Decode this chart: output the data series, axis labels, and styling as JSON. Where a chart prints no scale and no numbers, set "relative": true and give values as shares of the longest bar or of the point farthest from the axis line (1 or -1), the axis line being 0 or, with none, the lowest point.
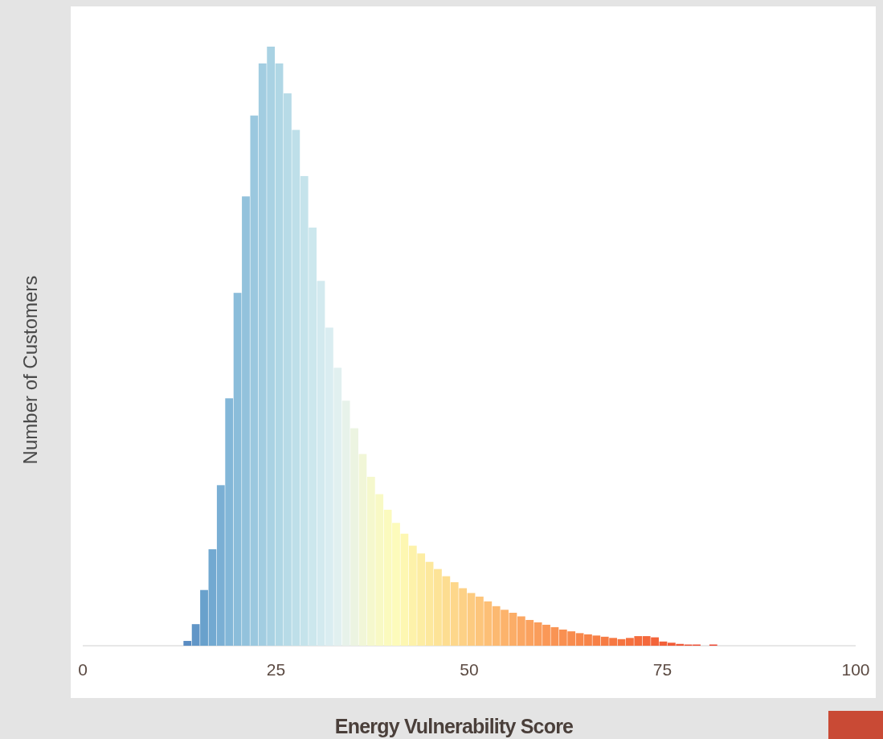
{
  "chart_data": {
    "type": "bar",
    "xlabel": "Energy Vulnerability Score",
    "ylabel": "Number of Customers",
    "relative": true,
    "xlim": [
      0,
      100
    ],
    "xticks": [
      0,
      25,
      50,
      75,
      100
    ],
    "tick_labels": "x",
    "grid": false,
    "x": [
      13.54,
      14.62,
      15.7,
      16.78,
      17.86,
      18.94,
      20.02,
      21.1,
      22.18,
      23.26,
      24.34,
      25.42,
      26.5,
      27.58,
      28.66,
      29.74,
      30.82,
      31.9,
      32.98,
      34.06,
      35.14,
      36.22,
      37.3,
      38.38,
      39.46,
      40.54,
      41.62,
      42.7,
      43.78,
      44.86,
      45.94,
      47.02,
      48.1,
      49.18,
      50.26,
      51.34,
      52.42,
      53.5,
      54.58,
      55.66,
      56.74,
      57.82,
      58.9,
      59.98,
      61.06,
      62.14,
      63.22,
      64.3,
      65.38,
      66.46,
      67.54,
      68.62,
      69.7,
      70.78,
      71.86,
      72.94,
      74.02,
      75.1,
      76.18,
      77.26,
      78.34,
      79.42,
      80.5,
      81.58
    ],
    "values": [
      0.008,
      0.036,
      0.093,
      0.161,
      0.268,
      0.413,
      0.589,
      0.75,
      0.885,
      0.972,
      1,
      0.972,
      0.922,
      0.861,
      0.784,
      0.698,
      0.609,
      0.531,
      0.464,
      0.409,
      0.363,
      0.32,
      0.282,
      0.253,
      0.227,
      0.205,
      0.187,
      0.167,
      0.154,
      0.14,
      0.128,
      0.116,
      0.106,
      0.096,
      0.088,
      0.082,
      0.074,
      0.066,
      0.06,
      0.055,
      0.049,
      0.043,
      0.039,
      0.035,
      0.031,
      0.027,
      0.024,
      0.021,
      0.019,
      0.017,
      0.015,
      0.013,
      0.011,
      0.013,
      0.016,
      0.016,
      0.014,
      0.007,
      0.005,
      0.003,
      0.002,
      0.002,
      null,
      0.002
    ],
    "colors": [
      "#5a8cc2",
      "#6196c7",
      "#69a1cc",
      "#72a9d1",
      "#7aafd4",
      "#83b7d8",
      "#8bbdda",
      "#93c2dc",
      "#9bc8df",
      "#a2cde1",
      "#a9d2e3",
      "#b0d7e5",
      "#b7dbe7",
      "#bedfe9",
      "#c5e3eb",
      "#cce7ed",
      "#d3eaef",
      "#daedf1",
      "#e1f0f0",
      "#e7f2ea",
      "#ecf4e1",
      "#f1f6d7",
      "#f5f8cd",
      "#f8f9c5",
      "#fbfabe",
      "#fdfbbb",
      "#fdf7b2",
      "#fdf2aa",
      "#fdeda3",
      "#fde89d",
      "#fde397",
      "#fddd91",
      "#fdd78b",
      "#fdd186",
      "#fdcb80",
      "#fdc57b",
      "#fdbf76",
      "#fcb971",
      "#fcb36c",
      "#fbad67",
      "#fba763",
      "#fba25f",
      "#fa9d5b",
      "#fa9857",
      "#f99454",
      "#f99051",
      "#f88c4e",
      "#f8884b",
      "#f78448",
      "#f78046",
      "#f67c44",
      "#f67842",
      "#f57440",
      "#f5703e",
      "#f46c3c",
      "#f4683b",
      "#f3643a",
      "#f26039",
      "#f15c38",
      "#f05837",
      "#ef5436",
      "#ee5036",
      null,
      "#ec4834"
    ]
  }
}
